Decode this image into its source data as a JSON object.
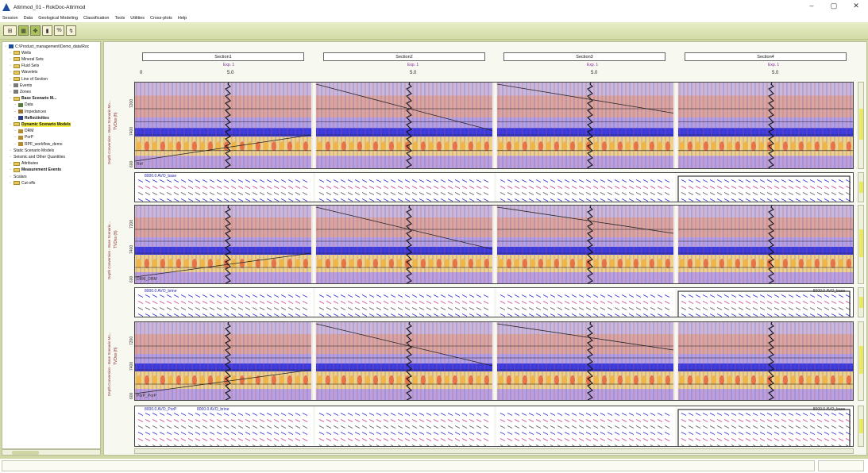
{
  "window": {
    "title": "Attrimod_01 - RokDoc-Attrimod",
    "min": "–",
    "max": "▢",
    "close": "✕"
  },
  "menu": [
    "Session",
    "Data",
    "Geological Modeling",
    "Classification",
    "Tools",
    "Utilities",
    "Cross-plots",
    "Help"
  ],
  "toolbar": {
    "buttons": [
      {
        "label": "⊞",
        "icon": "layout-icon"
      },
      {
        "label": "▦",
        "icon": "grid-icon"
      },
      {
        "label": "✥",
        "icon": "model-icon"
      },
      {
        "label": "▮",
        "icon": "battery-icon"
      },
      {
        "label": "%",
        "icon": "percent-icon"
      },
      {
        "label": "↯",
        "icon": "tool-icon"
      }
    ]
  },
  "tree": [
    {
      "label": "C:\\Product_management\\Demo_data\\Roc",
      "icon": "project-icon",
      "indent": 0
    },
    {
      "label": "Wells",
      "icon": "folder-icon",
      "indent": 1
    },
    {
      "label": "Mineral Sets",
      "icon": "folder-icon",
      "indent": 1
    },
    {
      "label": "Fluid Sets",
      "icon": "folder-icon",
      "indent": 1
    },
    {
      "label": "Wavelets",
      "icon": "folder-icon",
      "indent": 1
    },
    {
      "label": "Line of Section",
      "icon": "folder-icon",
      "indent": 1
    },
    {
      "label": "Events",
      "icon": "events-icon",
      "indent": 1
    },
    {
      "label": "Zones",
      "icon": "zones-icon",
      "indent": 1
    },
    {
      "label": "Base Scenario M...",
      "icon": "folder-icon",
      "indent": 1,
      "bold": true
    },
    {
      "label": "Data",
      "icon": "data-icon",
      "indent": 2
    },
    {
      "label": "Impedances",
      "icon": "impedance-icon",
      "indent": 2
    },
    {
      "label": "Reflectivities",
      "icon": "reflectivity-icon",
      "indent": 2,
      "bold": true
    },
    {
      "label": "Dynamic Scenario Models",
      "icon": "folder-icon",
      "indent": 1,
      "highlight": true,
      "bold": true
    },
    {
      "label": "DRM",
      "icon": "model-icon",
      "indent": 2
    },
    {
      "label": "PorP",
      "icon": "model-icon",
      "indent": 2
    },
    {
      "label": "RPF_workflow_demo",
      "icon": "model-icon",
      "indent": 2
    },
    {
      "label": "Static Scenario Models",
      "icon": "",
      "indent": 1
    },
    {
      "label": "Seismic and Other Quantities",
      "icon": "",
      "indent": 1
    },
    {
      "label": "Attributes",
      "icon": "folder-icon",
      "indent": 1
    },
    {
      "label": "Measurement Events",
      "icon": "folder-icon",
      "indent": 1,
      "bold": true
    },
    {
      "label": "Scalars",
      "icon": "",
      "indent": 1
    },
    {
      "label": "Cut-offs",
      "icon": "folder-icon",
      "indent": 1
    }
  ],
  "sections": [
    "Section1",
    "Section2",
    "Section3",
    "Section4"
  ],
  "exp_label": "Exp. 1",
  "axis_values": [
    "0",
    "5.0"
  ],
  "tracks": [
    {
      "kind": "seismic",
      "label": "Ref",
      "side": "Depth Conversion - Base Scenario Mo...",
      "ytitle": "TVDss (ft)",
      "ticks": [
        "7200",
        "7400",
        "600"
      ]
    },
    {
      "kind": "avo",
      "left": "8000.0 AVO_base",
      "right": ""
    },
    {
      "kind": "seismic",
      "label": "DRM_DRM",
      "side": "Depth Conversion - Base Scenario...",
      "ytitle": "TVDss (ft)",
      "ticks": [
        "7200",
        "7400",
        "600"
      ]
    },
    {
      "kind": "avo",
      "left": "8000.0 AVO_brine",
      "right": "8000.0 AVO_base"
    },
    {
      "kind": "seismic",
      "label": "PorP_PorP",
      "side": "Depth Conversion - Base Scenario Mo...",
      "ytitle": "TVDss (ft)",
      "ticks": [
        "7200",
        "7400",
        "600"
      ]
    },
    {
      "kind": "avo",
      "left": "8000.0 AVO_PorP",
      "left2": "8000.0 AVO_brine",
      "right": "8000.0 AVO_base"
    }
  ]
}
